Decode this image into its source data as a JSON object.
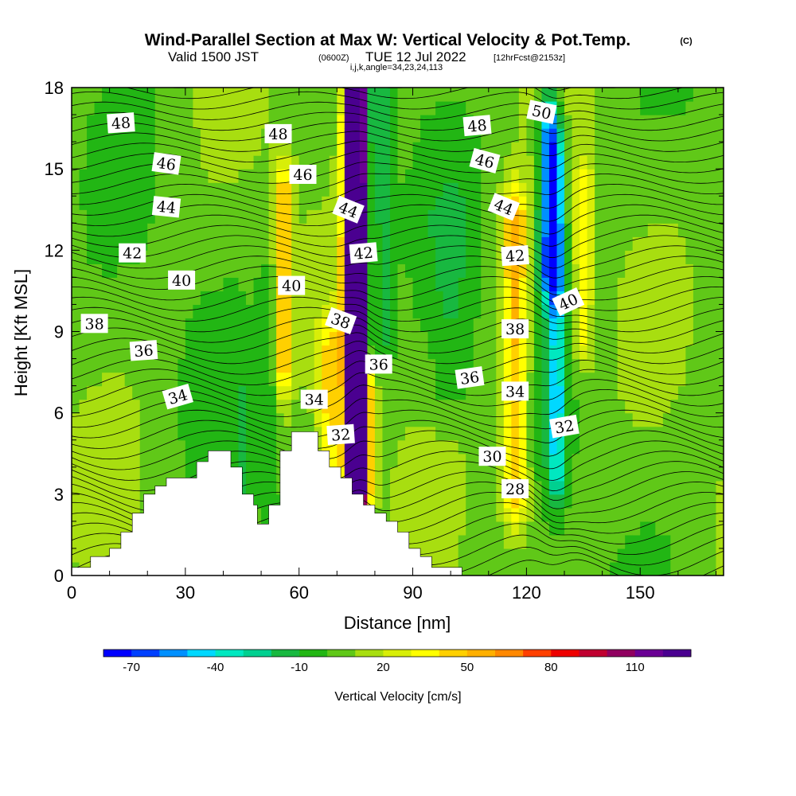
{
  "header": {
    "title": "Wind-Parallel Section at Max W: Vertical Velocity & Pot.Temp.",
    "copyright": "(C)",
    "valid_prefix": "Valid 1500 JST",
    "valid_zulu": "(0600Z)",
    "valid_date": "TUE 12 Jul 2022",
    "forecast": "[12hrFcst@2153z]",
    "indices": "i,j,k,angle=34,23,24,113"
  },
  "chart_data": {
    "type": "heatmap",
    "xlabel": "Distance [nm]",
    "ylabel": "Height [Kft MSL]",
    "xlim": [
      0,
      172
    ],
    "ylim": [
      0,
      18
    ],
    "x_ticks": [
      "0",
      "30",
      "60",
      "90",
      "120",
      "150"
    ],
    "x_tick_values": [
      0,
      30,
      60,
      90,
      120,
      150
    ],
    "y_ticks": [
      "0",
      "3",
      "6",
      "9",
      "12",
      "15",
      "18"
    ],
    "y_tick_values": [
      0,
      3,
      6,
      9,
      12,
      15,
      18
    ],
    "background_color": "#22b614",
    "colorbar": {
      "label": "Vertical Velocity [cm/s]",
      "tick_labels": [
        "-70",
        "-40",
        "-10",
        "20",
        "50",
        "80",
        "110"
      ],
      "tick_values": [
        -70,
        -40,
        -10,
        20,
        50,
        80,
        110
      ],
      "min": -70,
      "max": 140,
      "step": 10,
      "colors": [
        "#0000ff",
        "#0040ff",
        "#0090ff",
        "#00d8ff",
        "#00e8c0",
        "#00d090",
        "#18b840",
        "#22b614",
        "#60c818",
        "#a8de10",
        "#d8ee08",
        "#ffff00",
        "#ffd000",
        "#ffb000",
        "#ff8800",
        "#ff4000",
        "#ee0000",
        "#c00030",
        "#900060",
        "#6a0094",
        "#4a0090"
      ]
    },
    "terrain_profile": {
      "x": [
        0,
        5,
        5,
        10,
        10,
        13,
        13,
        16,
        16,
        19,
        19,
        22,
        22,
        25,
        25,
        33,
        33,
        36,
        36,
        42,
        42,
        45,
        45,
        48,
        48,
        49,
        49,
        52,
        52,
        55,
        55,
        58,
        58,
        65,
        65,
        68,
        68,
        71,
        71,
        74,
        74,
        77,
        77,
        80,
        80,
        83,
        83,
        86,
        86,
        89,
        89,
        92,
        92,
        95,
        95,
        103,
        103,
        172
      ],
      "y": [
        0.3,
        0.3,
        0.7,
        0.7,
        1,
        1,
        1.6,
        1.6,
        2.3,
        2.3,
        3,
        3,
        3.3,
        3.3,
        3.6,
        3.6,
        4.2,
        4.2,
        4.6,
        4.6,
        4,
        4,
        3,
        3,
        2.6,
        2.6,
        1.9,
        1.9,
        2.6,
        2.6,
        4.6,
        4.6,
        5.3,
        5.3,
        4.6,
        4.6,
        4,
        4,
        3.6,
        3.6,
        3,
        3,
        2.6,
        2.6,
        2.3,
        2.3,
        2,
        2,
        1.6,
        1.6,
        1,
        1,
        0.7,
        0.7,
        0.3,
        0.3,
        0,
        0
      ]
    },
    "w_features": [
      {
        "x": 75,
        "y": [
          0,
          18
        ],
        "peak": 130,
        "width": 2.4
      },
      {
        "x": 75.5,
        "y": [
          4,
          18
        ],
        "peak": 90,
        "width": 3.6
      },
      {
        "x": 78.5,
        "y": [
          9,
          18
        ],
        "peak": -55,
        "width": 1.8
      },
      {
        "x": 82,
        "y": [
          9,
          18
        ],
        "peak": -20,
        "width": 3
      },
      {
        "x": 56,
        "y": [
          8,
          14
        ],
        "peak": 50,
        "width": 2.2
      },
      {
        "x": 52,
        "y": [
          3,
          10
        ],
        "peak": -12,
        "width": 2.5
      },
      {
        "x": 45,
        "y": [
          2,
          6
        ],
        "peak": -12,
        "width": 2.5
      },
      {
        "x": 117,
        "y": [
          3,
          13
        ],
        "peak": 50,
        "width": 3.5
      },
      {
        "x": 126,
        "y": [
          11.5,
          16.5
        ],
        "peak": -70,
        "width": 2.8
      },
      {
        "x": 128,
        "y": [
          4,
          15
        ],
        "peak": -45,
        "width": 2.2
      },
      {
        "x": 135,
        "y": [
          9,
          14
        ],
        "peak": 30,
        "width": 2.5
      },
      {
        "x": 68,
        "y": [
          4.5,
          8
        ],
        "peak": 35,
        "width": 3
      },
      {
        "x": 100,
        "y": [
          7,
          13
        ],
        "peak": -12,
        "width": 6
      }
    ],
    "isentropes": {
      "line_color": "#000000",
      "labels": [
        {
          "text": "48",
          "x": 13,
          "y": 16.7,
          "rot": -4
        },
        {
          "text": "46",
          "x": 25,
          "y": 15.2,
          "rot": 8
        },
        {
          "text": "44",
          "x": 25,
          "y": 13.6,
          "rot": 6
        },
        {
          "text": "42",
          "x": 16,
          "y": 11.9,
          "rot": 0
        },
        {
          "text": "40",
          "x": 29,
          "y": 10.9,
          "rot": 0
        },
        {
          "text": "38",
          "x": 6,
          "y": 9.3,
          "rot": 0
        },
        {
          "text": "36",
          "x": 19,
          "y": 8.3,
          "rot": -4
        },
        {
          "text": "34",
          "x": 28,
          "y": 6.6,
          "rot": -16
        },
        {
          "text": "48",
          "x": 54.5,
          "y": 16.3,
          "rot": 0
        },
        {
          "text": "46",
          "x": 61,
          "y": 14.8,
          "rot": 0
        },
        {
          "text": "44",
          "x": 73,
          "y": 13.5,
          "rot": 22
        },
        {
          "text": "42",
          "x": 77,
          "y": 11.9,
          "rot": -5
        },
        {
          "text": "40",
          "x": 58,
          "y": 10.7,
          "rot": 0
        },
        {
          "text": "38",
          "x": 71,
          "y": 9.4,
          "rot": 20
        },
        {
          "text": "36",
          "x": 81,
          "y": 7.8,
          "rot": 0
        },
        {
          "text": "34",
          "x": 64,
          "y": 6.5,
          "rot": 0
        },
        {
          "text": "32",
          "x": 71,
          "y": 5.2,
          "rot": -4
        },
        {
          "text": "48",
          "x": 107,
          "y": 16.6,
          "rot": -5
        },
        {
          "text": "46",
          "x": 109,
          "y": 15.3,
          "rot": 15
        },
        {
          "text": "44",
          "x": 114,
          "y": 13.6,
          "rot": 22
        },
        {
          "text": "42",
          "x": 117,
          "y": 11.8,
          "rot": -4
        },
        {
          "text": "40",
          "x": 131,
          "y": 10.1,
          "rot": -25
        },
        {
          "text": "38",
          "x": 117,
          "y": 9.1,
          "rot": 0
        },
        {
          "text": "36",
          "x": 105,
          "y": 7.3,
          "rot": -8
        },
        {
          "text": "34",
          "x": 117,
          "y": 6.8,
          "rot": 0
        },
        {
          "text": "32",
          "x": 130,
          "y": 5.5,
          "rot": -10
        },
        {
          "text": "30",
          "x": 111,
          "y": 4.4,
          "rot": 0
        },
        {
          "text": "28",
          "x": 117,
          "y": 3.2,
          "rot": 0
        },
        {
          "text": "50",
          "x": 124,
          "y": 17.1,
          "rot": 12
        }
      ]
    }
  }
}
